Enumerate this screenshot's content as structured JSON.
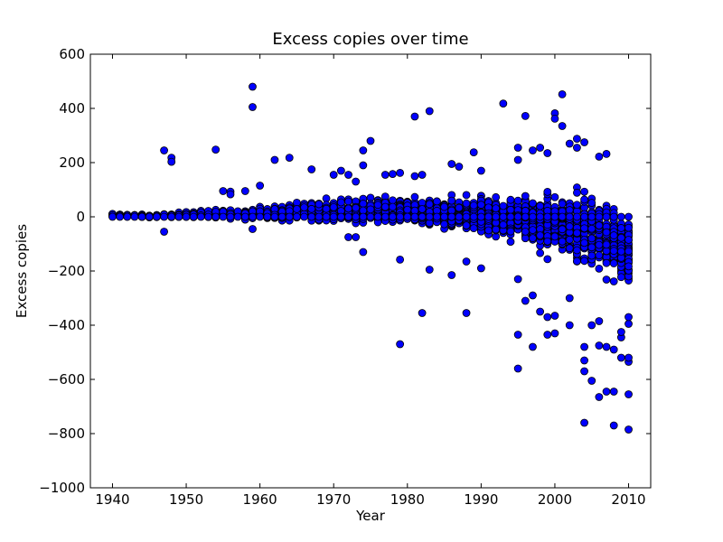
{
  "chart_data": {
    "type": "scatter",
    "title": "Excess copies over time",
    "xlabel": "Year",
    "ylabel": "Excess copies",
    "xlim": [
      1937,
      2013
    ],
    "ylim": [
      -1000,
      600
    ],
    "xticks": [
      1940,
      1950,
      1960,
      1970,
      1980,
      1990,
      2000,
      2010
    ],
    "yticks": [
      600,
      400,
      200,
      0,
      -200,
      -400,
      -600,
      -800,
      -1000
    ],
    "xtick_labels": [
      "1940",
      "1950",
      "1960",
      "1970",
      "1980",
      "1990",
      "2000",
      "2010"
    ],
    "ytick_labels": [
      "600",
      "400",
      "200",
      "0",
      "−200",
      "−400",
      "−600",
      "−800",
      "−1000"
    ],
    "grid": false,
    "marker_color": "#0000ff",
    "marker_edge_color": "#000000",
    "outliers": [
      [
        1947,
        245
      ],
      [
        1948,
        218
      ],
      [
        1948,
        203
      ],
      [
        1947,
        -55
      ],
      [
        1954,
        248
      ],
      [
        1955,
        95
      ],
      [
        1956,
        93
      ],
      [
        1956,
        83
      ],
      [
        1958,
        95
      ],
      [
        1959,
        480
      ],
      [
        1959,
        405
      ],
      [
        1959,
        -45
      ],
      [
        1960,
        115
      ],
      [
        1962,
        210
      ],
      [
        1964,
        218
      ],
      [
        1967,
        175
      ],
      [
        1970,
        155
      ],
      [
        1971,
        170
      ],
      [
        1972,
        155
      ],
      [
        1972,
        -75
      ],
      [
        1973,
        130
      ],
      [
        1973,
        -75
      ],
      [
        1974,
        245
      ],
      [
        1974,
        190
      ],
      [
        1974,
        -130
      ],
      [
        1975,
        280
      ],
      [
        1977,
        155
      ],
      [
        1978,
        158
      ],
      [
        1979,
        162
      ],
      [
        1979,
        -158
      ],
      [
        1979,
        -470
      ],
      [
        1981,
        370
      ],
      [
        1981,
        150
      ],
      [
        1982,
        155
      ],
      [
        1982,
        -355
      ],
      [
        1983,
        390
      ],
      [
        1983,
        -195
      ],
      [
        1986,
        195
      ],
      [
        1986,
        -215
      ],
      [
        1987,
        185
      ],
      [
        1988,
        -165
      ],
      [
        1988,
        -355
      ],
      [
        1989,
        238
      ],
      [
        1990,
        170
      ],
      [
        1990,
        -190
      ],
      [
        1993,
        418
      ],
      [
        1995,
        255
      ],
      [
        1995,
        210
      ],
      [
        1995,
        -230
      ],
      [
        1995,
        -435
      ],
      [
        1995,
        -560
      ],
      [
        1996,
        372
      ],
      [
        1996,
        -310
      ],
      [
        1997,
        245
      ],
      [
        1997,
        -290
      ],
      [
        1997,
        -480
      ],
      [
        1998,
        255
      ],
      [
        1998,
        -350
      ],
      [
        1999,
        235
      ],
      [
        1999,
        -435
      ],
      [
        1999,
        -370
      ],
      [
        2000,
        382
      ],
      [
        2000,
        362
      ],
      [
        2000,
        -430
      ],
      [
        2000,
        -365
      ],
      [
        2001,
        452
      ],
      [
        2001,
        335
      ],
      [
        2002,
        270
      ],
      [
        2002,
        -400
      ],
      [
        2002,
        -300
      ],
      [
        2003,
        288
      ],
      [
        2003,
        255
      ],
      [
        2004,
        275
      ],
      [
        2004,
        -480
      ],
      [
        2004,
        -530
      ],
      [
        2004,
        -570
      ],
      [
        2004,
        -760
      ],
      [
        2005,
        -605
      ],
      [
        2005,
        -400
      ],
      [
        2006,
        222
      ],
      [
        2006,
        -665
      ],
      [
        2006,
        -475
      ],
      [
        2006,
        -385
      ],
      [
        2007,
        232
      ],
      [
        2007,
        -645
      ],
      [
        2007,
        -480
      ],
      [
        2008,
        -645
      ],
      [
        2008,
        -770
      ],
      [
        2008,
        -490
      ],
      [
        2009,
        -520
      ],
      [
        2009,
        -445
      ],
      [
        2009,
        -425
      ],
      [
        2010,
        -535
      ],
      [
        2010,
        -520
      ],
      [
        2010,
        -655
      ],
      [
        2010,
        -785
      ],
      [
        2010,
        -395
      ],
      [
        2010,
        -370
      ]
    ],
    "spread_envelope": [
      {
        "year": 1940,
        "low": -5,
        "high": 20
      },
      {
        "year": 1945,
        "low": -5,
        "high": 10
      },
      {
        "year": 1950,
        "low": -5,
        "high": 25
      },
      {
        "year": 1955,
        "low": -15,
        "high": 40
      },
      {
        "year": 1960,
        "low": -20,
        "high": 50
      },
      {
        "year": 1965,
        "low": -25,
        "high": 70
      },
      {
        "year": 1970,
        "low": -35,
        "high": 90
      },
      {
        "year": 1975,
        "low": -50,
        "high": 100
      },
      {
        "year": 1980,
        "low": -60,
        "high": 100
      },
      {
        "year": 1985,
        "low": -80,
        "high": 110
      },
      {
        "year": 1990,
        "low": -110,
        "high": 120
      },
      {
        "year": 1995,
        "low": -140,
        "high": 130
      },
      {
        "year": 2000,
        "low": -200,
        "high": 140
      },
      {
        "year": 2005,
        "low": -280,
        "high": 150
      },
      {
        "year": 2010,
        "low": -330,
        "high": 50
      }
    ]
  }
}
